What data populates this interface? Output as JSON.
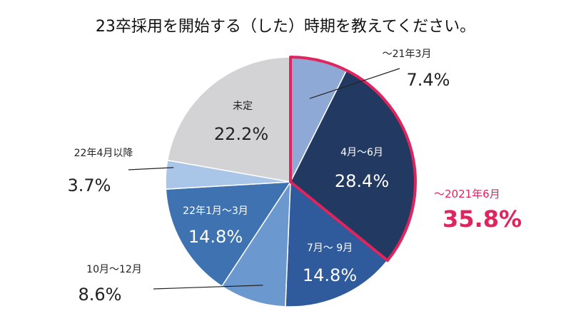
{
  "chart_data": {
    "type": "pie",
    "title": "23卒採用を開始する（した）時期を教えてください。",
    "slices": [
      {
        "label": "～21年3月",
        "value": 7.4,
        "display": "7.4%",
        "color": "#8fa9d6"
      },
      {
        "label": "4月～6月",
        "value": 28.4,
        "display": "28.4%",
        "color": "#223a61"
      },
      {
        "label": "7月～ 9月",
        "value": 14.8,
        "display": "14.8%",
        "color": "#2f5a9b"
      },
      {
        "label": "10月～12月",
        "value": 8.6,
        "display": "8.6%",
        "color": "#6a98cf"
      },
      {
        "label": "22年1月～3月",
        "value": 14.8,
        "display": "14.8%",
        "color": "#3e72b0"
      },
      {
        "label": "22年4月以降",
        "value": 3.7,
        "display": "3.7%",
        "color": "#a9c6e9"
      },
      {
        "label": "未定",
        "value": 22.2,
        "display": "22.2%",
        "color": "#d3d3d5"
      }
    ],
    "highlight": {
      "label": "～2021年6月",
      "value": "35.8%",
      "color": "#e0245e",
      "slices": [
        0,
        1
      ]
    }
  }
}
